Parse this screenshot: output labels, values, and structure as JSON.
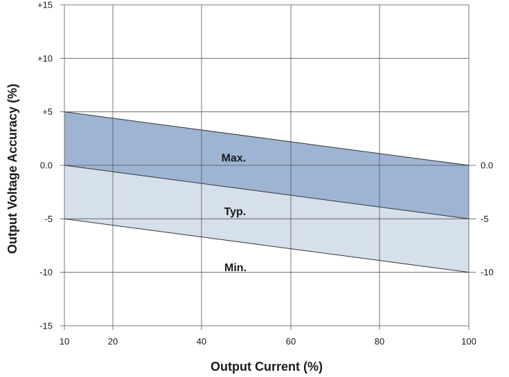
{
  "chart_data": {
    "type": "area",
    "title": "",
    "xlabel": "Output Current (%)",
    "ylabel": "Output Voltage Accuracy (%)",
    "xlim": [
      10,
      100
    ],
    "ylim": [
      -15,
      15
    ],
    "x_ticks": [
      10,
      20,
      40,
      60,
      80,
      100
    ],
    "y_ticks": [
      15,
      10,
      5,
      0,
      -5,
      -10,
      -15
    ],
    "y_tick_labels": [
      "+15",
      "+10",
      "+5",
      "0.0",
      "-5",
      "-10",
      "-15"
    ],
    "right_y_ticks": [
      0,
      -5,
      -10
    ],
    "right_y_tick_labels": [
      "0.0",
      "-5",
      "-10"
    ],
    "grid": true,
    "series": [
      {
        "name": "Max.",
        "x": [
          10,
          100
        ],
        "values": [
          5,
          0
        ]
      },
      {
        "name": "Typ.",
        "x": [
          10,
          100
        ],
        "values": [
          0,
          -5
        ]
      },
      {
        "name": "Min.",
        "x": [
          10,
          100
        ],
        "values": [
          -5,
          -10
        ]
      }
    ],
    "colors": {
      "upper_band": "#9db4d2",
      "lower_band": "#d6e0ec",
      "line": "#333333",
      "grid": "#555555"
    }
  }
}
